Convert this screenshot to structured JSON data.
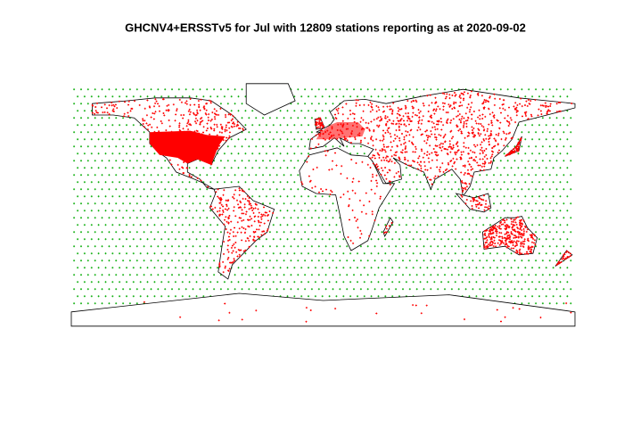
{
  "title": "GHCNV4+ERSSTv5 for Jul with 12809 stations reporting as at 2020-09-02"
}
